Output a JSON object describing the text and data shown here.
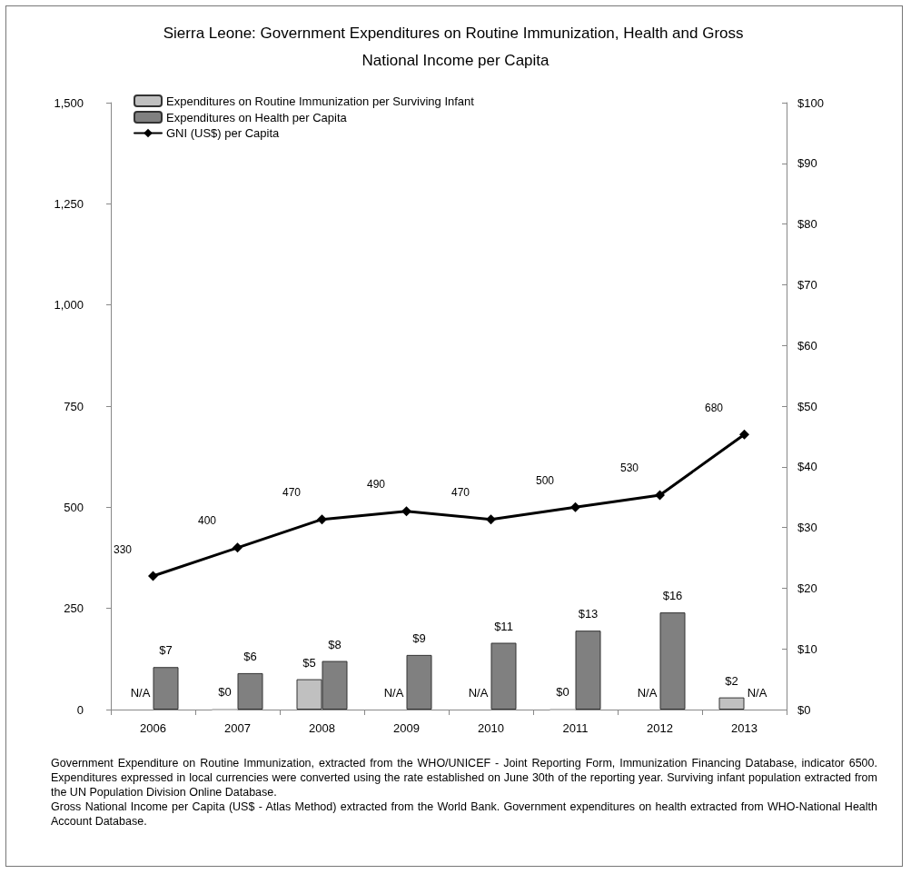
{
  "chart_data": {
    "type": "bar",
    "title": "Sierra Leone: Government Expenditures on Routine Immunization, Health and Gross National Income per Capita",
    "categories": [
      "2006",
      "2007",
      "2008",
      "2009",
      "2010",
      "2011",
      "2012",
      "2013"
    ],
    "series": [
      {
        "name": "Expenditures on Routine Immunization per Surviving Infant",
        "axis": "y2",
        "color": "#c0c0c0",
        "values": [
          null,
          0,
          5,
          null,
          null,
          0,
          null,
          2
        ],
        "value_labels": [
          "N/A",
          "$0",
          "$5",
          "N/A",
          "N/A",
          "$0",
          "N/A",
          "$2"
        ]
      },
      {
        "name": "Expenditures on Health per Capita",
        "axis": "y2",
        "color": "#808080",
        "values": [
          7,
          6,
          8,
          9,
          11,
          13,
          16,
          null
        ],
        "value_labels": [
          "$7",
          "$6",
          "$8",
          "$9",
          "$11",
          "$13",
          "$16",
          "N/A"
        ]
      },
      {
        "name": "GNI (US$) per Capita",
        "type": "line",
        "color": "#000000",
        "values": [
          330,
          400,
          470,
          490,
          470,
          500,
          530,
          680
        ],
        "value_labels": [
          "330",
          "400",
          "470",
          "490",
          "470",
          "500",
          "530",
          "680"
        ]
      }
    ],
    "ylim": [
      0,
      1500
    ],
    "yticks": [
      0,
      {
        "value": 250,
        "label": "250"
      },
      {
        "value": 500,
        "label": "500"
      },
      {
        "value": 750,
        "label": "750"
      },
      {
        "value": 1000,
        "label": "1,000"
      },
      {
        "value": 1250,
        "label": "1,250"
      },
      {
        "value": 1500,
        "label": "1,500"
      }
    ],
    "y2lim": [
      0,
      100
    ],
    "y2ticks": [
      {
        "value": 0,
        "label": "$0"
      },
      {
        "value": 10,
        "label": "$10"
      },
      {
        "value": 20,
        "label": "$20"
      },
      {
        "value": 30,
        "label": "$30"
      },
      {
        "value": 40,
        "label": "$40"
      },
      {
        "value": 50,
        "label": "$50"
      },
      {
        "value": 60,
        "label": "$60"
      },
      {
        "value": 70,
        "label": "$70"
      },
      {
        "value": 80,
        "label": "$80"
      },
      {
        "value": 90,
        "label": "$90"
      },
      {
        "value": 100,
        "label": "$100"
      }
    ],
    "grid": false,
    "legend": "top left",
    "marker": "diamond",
    "line_style": "solid",
    "annotations": [
      "Government Expenditure on Routine Immunization, extracted from the WHO/UNICEF - Joint Reporting Form, Immunization Financing Database, indicator 6500. Expenditures expressed in local currencies were converted using the rate established on June 30th of the reporting year. Surviving infant population extracted from the UN Population Division Online Database.",
      "Gross National Income per Capita (US$ - Atlas Method) extracted from the World Bank. Government expenditures on health extracted from WHO-National Health Account Database."
    ]
  }
}
